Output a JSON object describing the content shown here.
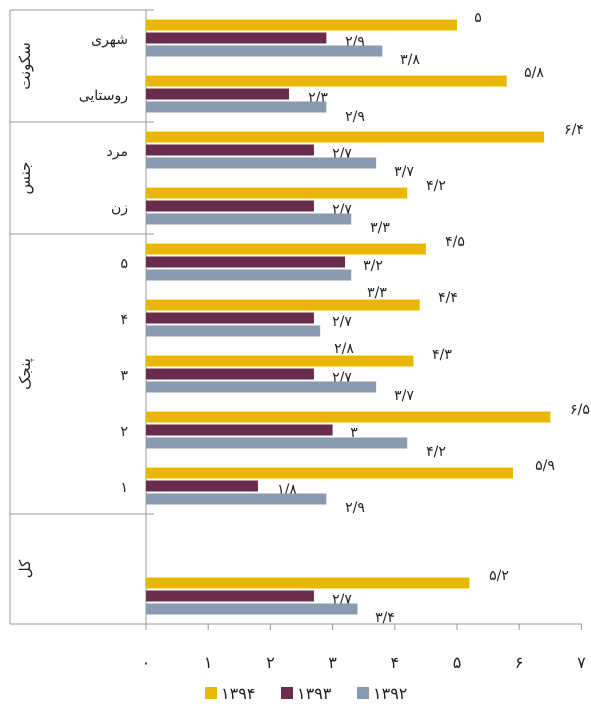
{
  "chart_data": {
    "type": "bar",
    "orientation": "horizontal",
    "title": "",
    "xlabel": "",
    "ylabel": "",
    "xlim": [
      0,
      7
    ],
    "x_ticks": [
      "۰",
      "۱",
      "۲",
      "۳",
      "۴",
      "۵",
      "۶",
      "۷"
    ],
    "grid": false,
    "legend_position": "bottom",
    "groups": [
      {
        "label": "سکونت",
        "categories": [
          "شهری",
          "روستایی"
        ]
      },
      {
        "label": "جنس",
        "categories": [
          "مرد",
          "زن"
        ]
      },
      {
        "label": "پنجک",
        "categories": [
          "۵",
          "۴",
          "۳",
          "۲",
          "۱"
        ]
      },
      {
        "label": "کل",
        "categories": [
          ""
        ]
      }
    ],
    "series": [
      {
        "name": "۱۳۹۴",
        "color": "#E8B800",
        "values": [
          5.0,
          5.8,
          6.4,
          4.2,
          4.5,
          4.4,
          4.3,
          6.5,
          5.9,
          5.2
        ],
        "labels": [
          "۵",
          "۵/۸",
          "۶/۴",
          "۴/۲",
          "۴/۵",
          "۴/۴",
          "۴/۳",
          "۶/۵",
          "۵/۹",
          "۵/۲"
        ]
      },
      {
        "name": "۱۳۹۳",
        "color": "#6B2D4F",
        "values": [
          2.9,
          2.3,
          2.7,
          2.7,
          3.2,
          2.7,
          2.7,
          3.0,
          1.8,
          2.7
        ],
        "labels": [
          "۲/۹",
          "۲/۳",
          "۲/۷",
          "۲/۷",
          "۳/۲",
          "۲/۷",
          "۲/۷",
          "۳",
          "۱/۸",
          "۲/۷"
        ]
      },
      {
        "name": "۱۳۹۲",
        "color": "#8A9AB2",
        "values": [
          3.8,
          2.9,
          3.7,
          3.3,
          3.3,
          2.8,
          3.7,
          4.2,
          2.9,
          3.4
        ],
        "labels": [
          "۳/۸",
          "۲/۹",
          "۳/۷",
          "۳/۳",
          "۳/۳",
          "۲/۸",
          "۳/۷",
          "۴/۲",
          "۲/۹",
          "۳/۴"
        ]
      }
    ]
  }
}
